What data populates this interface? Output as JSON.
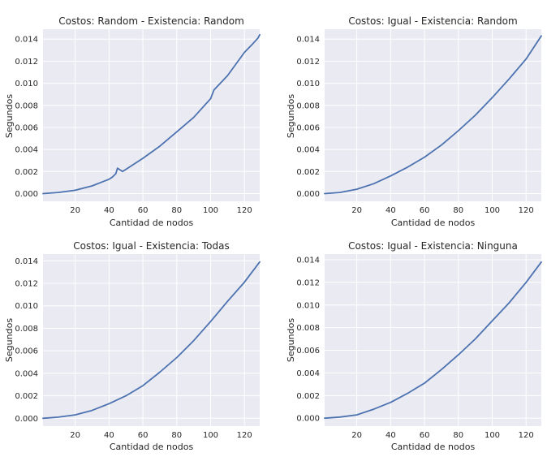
{
  "chart_data": [
    {
      "type": "line",
      "title": "Costos: Random - Existencia: Random",
      "xlabel": "Cantidad de nodos",
      "ylabel": "Segundos",
      "xlim": [
        1,
        129
      ],
      "ylim": [
        -0.0007,
        0.0149
      ],
      "xticks": [
        20,
        40,
        60,
        80,
        100,
        120
      ],
      "yticks": [
        "0.000",
        "0.002",
        "0.004",
        "0.006",
        "0.008",
        "0.010",
        "0.012",
        "0.014"
      ],
      "grid": true,
      "series": [
        {
          "color": "#4c72b0",
          "x": [
            1,
            10,
            20,
            30,
            40,
            42,
            44,
            45,
            46,
            48,
            50,
            60,
            70,
            80,
            90,
            100,
            102,
            110,
            120,
            125,
            128,
            129
          ],
          "y": [
            0.0,
            0.0001,
            0.0003,
            0.0007,
            0.0013,
            0.0015,
            0.0018,
            0.0023,
            0.0022,
            0.002,
            0.0022,
            0.0032,
            0.0043,
            0.0056,
            0.0069,
            0.0086,
            0.0094,
            0.0107,
            0.0128,
            0.0136,
            0.0141,
            0.0144
          ]
        }
      ]
    },
    {
      "type": "line",
      "title": "Costos: Igual - Existencia: Random",
      "xlabel": "Cantidad de nodos",
      "ylabel": "Segundos",
      "xlim": [
        1,
        129
      ],
      "ylim": [
        -0.0007,
        0.0149
      ],
      "xticks": [
        20,
        40,
        60,
        80,
        100,
        120
      ],
      "yticks": [
        "0.000",
        "0.002",
        "0.004",
        "0.006",
        "0.008",
        "0.010",
        "0.012",
        "0.014"
      ],
      "grid": true,
      "series": [
        {
          "color": "#4c72b0",
          "x": [
            1,
            10,
            20,
            30,
            40,
            50,
            60,
            70,
            80,
            90,
            100,
            110,
            120,
            129
          ],
          "y": [
            0.0,
            0.0001,
            0.0004,
            0.0009,
            0.0016,
            0.0024,
            0.0033,
            0.0044,
            0.0057,
            0.0071,
            0.0087,
            0.0104,
            0.0122,
            0.0143
          ]
        }
      ]
    },
    {
      "type": "line",
      "title": "Costos: Igual - Existencia: Todas",
      "xlabel": "Cantidad de nodos",
      "ylabel": "Segundos",
      "xlim": [
        1,
        129
      ],
      "ylim": [
        -0.0007,
        0.0146
      ],
      "xticks": [
        20,
        40,
        60,
        80,
        100,
        120
      ],
      "yticks": [
        "0.000",
        "0.002",
        "0.004",
        "0.006",
        "0.008",
        "0.010",
        "0.012",
        "0.014"
      ],
      "grid": true,
      "series": [
        {
          "color": "#4c72b0",
          "x": [
            1,
            10,
            20,
            30,
            40,
            50,
            60,
            70,
            80,
            90,
            100,
            110,
            120,
            129
          ],
          "y": [
            0.0,
            0.0001,
            0.0003,
            0.0007,
            0.0013,
            0.002,
            0.0029,
            0.0041,
            0.0054,
            0.0069,
            0.0086,
            0.0104,
            0.0121,
            0.0139
          ]
        }
      ]
    },
    {
      "type": "line",
      "title": "Costos: Igual - Existencia: Ninguna",
      "xlabel": "Cantidad de nodos",
      "ylabel": "Segundos",
      "xlim": [
        1,
        129
      ],
      "ylim": [
        -0.0007,
        0.0145
      ],
      "xticks": [
        20,
        40,
        60,
        80,
        100,
        120
      ],
      "yticks": [
        "0.000",
        "0.002",
        "0.004",
        "0.006",
        "0.008",
        "0.010",
        "0.012",
        "0.014"
      ],
      "grid": true,
      "series": [
        {
          "color": "#4c72b0",
          "x": [
            1,
            10,
            20,
            30,
            40,
            50,
            60,
            70,
            80,
            90,
            100,
            110,
            120,
            129
          ],
          "y": [
            0.0,
            0.0001,
            0.0003,
            0.0008,
            0.0014,
            0.0022,
            0.0031,
            0.0043,
            0.0056,
            0.007,
            0.0086,
            0.0102,
            0.012,
            0.0138
          ]
        }
      ]
    }
  ]
}
